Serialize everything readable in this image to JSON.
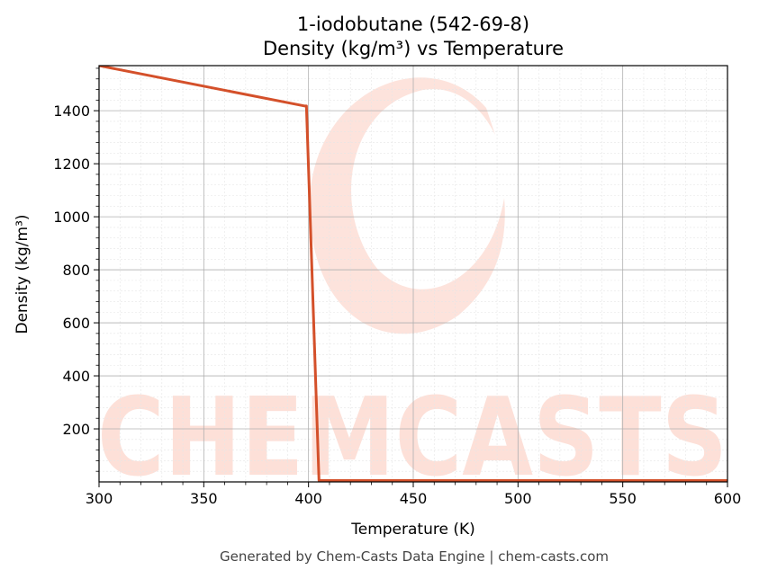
{
  "chart_data": {
    "type": "line",
    "title": "1-iodobutane (542-69-8)",
    "subtitle": "Density (kg/m³) vs Temperature",
    "xlabel": "Temperature (K)",
    "ylabel": "Density (kg/m³)",
    "xlim": [
      300,
      600
    ],
    "ylim": [
      0,
      1570
    ],
    "xticks": [
      300,
      350,
      400,
      450,
      500,
      550,
      600
    ],
    "yticks": [
      200,
      400,
      600,
      800,
      1000,
      1200,
      1400
    ],
    "grid": true,
    "line_color": "#d4502a",
    "series": [
      {
        "x": [
          300,
          398,
          399,
          405,
          600
        ],
        "y": [
          1570,
          1418,
          1418,
          5,
          5
        ]
      }
    ]
  },
  "watermark": {
    "text": "CHEMCASTS",
    "color": "#fde0d8"
  },
  "footer": "Generated by Chem-Casts Data Engine | chem-casts.com"
}
